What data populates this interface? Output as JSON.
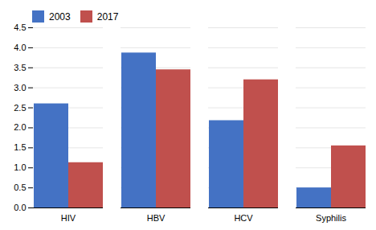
{
  "chart_data": {
    "type": "bar",
    "categories": [
      "HIV",
      "HBV",
      "HCV",
      "Syphilis"
    ],
    "series": [
      {
        "name": "2003",
        "color": "#4472C4",
        "values": [
          2.6,
          3.87,
          2.18,
          0.5
        ]
      },
      {
        "name": "2017",
        "color": "#C0504D",
        "values": [
          1.13,
          3.45,
          3.2,
          1.55
        ]
      }
    ],
    "ylim": [
      0,
      4.5
    ],
    "yticks": [
      {
        "value": 0,
        "label": "0.0"
      },
      0.5,
      {
        "value": 1.0,
        "label": "1.0"
      },
      1.5,
      {
        "value": 2.0,
        "label": "2.0"
      },
      2.5,
      {
        "value": 3.0,
        "label": "3.0"
      },
      3.5,
      {
        "value": 4.0,
        "label": "4.0"
      },
      4.5
    ],
    "grid": true,
    "legend": "upper left"
  }
}
